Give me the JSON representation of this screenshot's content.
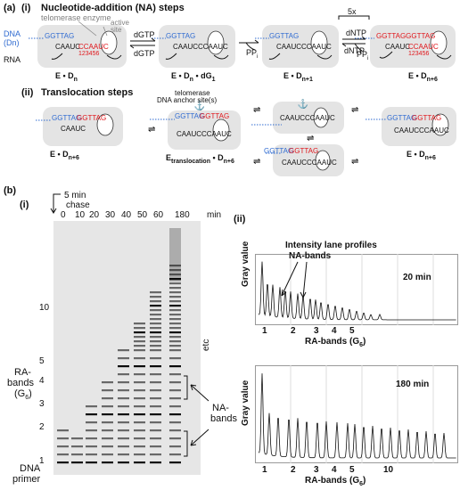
{
  "panel_a": {
    "label": "(a)",
    "sub_i": "(i)",
    "title_i": "Nucleotide-addition (NA) steps",
    "enzyme_label": "telomerase enzyme",
    "active_site": "active site",
    "dna_label": "DNA",
    "dn_label": "(Dn)",
    "rna_label": "RNA",
    "dna_seq": "GGTTAG",
    "rna_seq": "CAAUCCCAAUC",
    "rna_seq_short": "CAAUC",
    "template_red": "CCAAUC",
    "template_numbers": "123456",
    "dgtp": "dGTP",
    "dntp": "dNTP",
    "ppi": "PP",
    "ppi_sub": "i",
    "repeat": "5x",
    "state_labels": [
      "E • D",
      "E • D",
      "E • D",
      "E • D"
    ],
    "state_subs": [
      "n",
      "n",
      "n+1",
      "n+6"
    ],
    "state_extra": "• dG",
    "state_extra_sub": "1",
    "product_seq": "GGTTAGGGTTAG",
    "sub_ii": "(ii)",
    "title_ii": "Translocation steps",
    "anchor_label_1": "telomerase",
    "anchor_label_2": "DNA anchor site(s)",
    "trans_labels": [
      "E • D",
      "E",
      "E • D"
    ],
    "trans_subs": [
      "n+6",
      "translocation",
      "n+6"
    ],
    "trans_extra": "• D",
    "trans_extra_sub": "n+6",
    "mid_seq": "GGTTAGGGTTAG",
    "mid_seq_6": "6"
  },
  "panel_b": {
    "label": "(b)",
    "sub_i": "(i)",
    "sub_ii": "(ii)",
    "chase_label": "5 min",
    "chase_label_2": "chase",
    "lanes": [
      "0",
      "10",
      "20",
      "30",
      "40",
      "50",
      "60",
      "180"
    ],
    "min_label": "min",
    "y_ticks": [
      "10",
      "5",
      "4",
      "3",
      "2",
      "1"
    ],
    "ra_bands": "RA-",
    "ra_bands_2": "bands",
    "g6": "(G",
    "g6_sub": "6",
    "g6_close": ")",
    "dna_primer_1": "DNA",
    "dna_primer_2": "primer",
    "etc": "etc",
    "na_bands": "NA-",
    "na_bands_2": "bands",
    "profiles_title": "Intensity lane profiles",
    "na_bands_callout": "NA-bands",
    "gray_value": "Gray value",
    "profile_20": "20 min",
    "profile_180": "180 min",
    "xticks_top": [
      "1",
      "2",
      "3",
      "4",
      "5"
    ],
    "xticks_bottom": [
      "1",
      "2",
      "3",
      "4",
      "5",
      "10"
    ],
    "x_axis_label": "RA-bands (G",
    "x_axis_sub": "6",
    "x_axis_close": ")"
  },
  "colors": {
    "dna": "#2f6bd1",
    "template": "#e0161b",
    "enzyme": "#e4e4e4",
    "gel_bg": "#e6e6e6"
  }
}
